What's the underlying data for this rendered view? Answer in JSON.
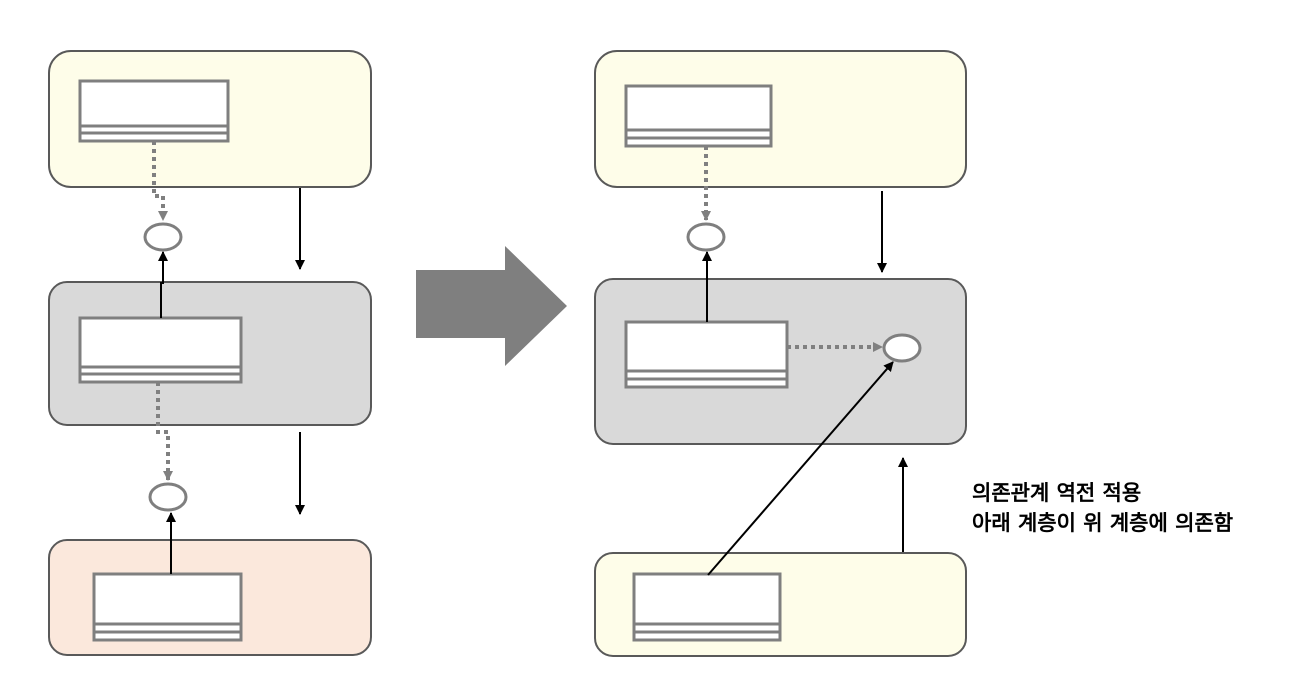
{
  "colors": {
    "high_layer_fill": "#fefde9",
    "middle_layer_fill": "#d9d9d9",
    "low_layer_fill": "#fbe8dc",
    "layer_border": "#595959",
    "component_border": "#7f7f7f",
    "interface_border": "#7f7f7f",
    "transition_arrow": "#7f7f7f",
    "dependency_arrow": "#000000",
    "implements_arrow": "#808080"
  },
  "caption": {
    "line1": "의존관계 역전 적용",
    "line2": "아래 계층이 위 계층에 의존함"
  },
  "icons": {
    "transition": "right-arrow-icon",
    "interface": "interface-circle-icon",
    "component": "component-box-icon"
  }
}
